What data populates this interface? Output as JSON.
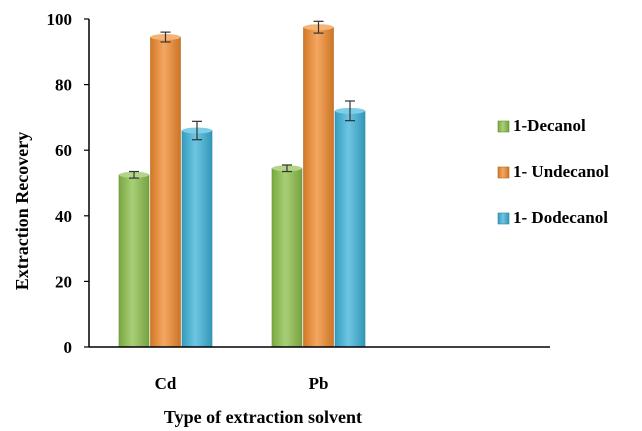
{
  "chart_data": {
    "type": "bar",
    "categories": [
      "Cd",
      "Pb"
    ],
    "series": [
      {
        "name": "1-Decanol",
        "values": [
          52.5,
          54.5
        ],
        "errors": [
          1.0,
          1.0
        ],
        "color": "#8bbf4a"
      },
      {
        "name": "1- Undecanol",
        "values": [
          94.5,
          97.5
        ],
        "errors": [
          1.5,
          1.8
        ],
        "color": "#f08a2c"
      },
      {
        "name": "1- Dodecanol",
        "values": [
          66.0,
          72.0
        ],
        "errors": [
          2.8,
          3.0
        ],
        "color": "#3cb2d8"
      }
    ],
    "xlabel": "Type of extraction solvent",
    "ylabel": "Extraction Recovery",
    "ylim": [
      0,
      100
    ],
    "yticks": [
      "0",
      "20",
      "40",
      "60",
      "80",
      "100"
    ],
    "legend_position": "right",
    "grid": false
  }
}
